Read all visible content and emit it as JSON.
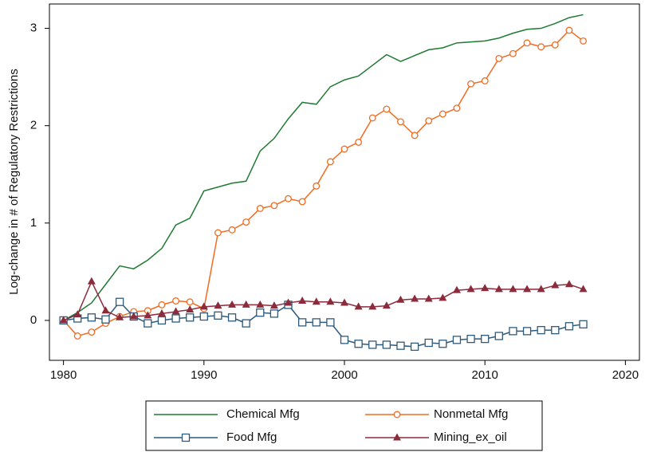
{
  "chart_data": {
    "type": "line",
    "y_label": "Log-change in # of Regulatory Restrictions",
    "x": [
      1980,
      1981,
      1982,
      1983,
      1984,
      1985,
      1986,
      1987,
      1988,
      1989,
      1990,
      1991,
      1992,
      1993,
      1994,
      1995,
      1996,
      1997,
      1998,
      1999,
      2000,
      2001,
      2002,
      2003,
      2004,
      2005,
      2006,
      2007,
      2008,
      2009,
      2010,
      2011,
      2012,
      2013,
      2014,
      2015,
      2016,
      2017
    ],
    "series": [
      {
        "name": "Chemical Mfg",
        "color": "#1f7a32",
        "marker": "none",
        "values": [
          0,
          0.08,
          0.18,
          0.37,
          0.56,
          0.53,
          0.62,
          0.74,
          0.98,
          1.05,
          1.33,
          1.37,
          1.41,
          1.43,
          1.74,
          1.87,
          2.07,
          2.24,
          2.22,
          2.4,
          2.47,
          2.51,
          2.62,
          2.73,
          2.66,
          2.72,
          2.78,
          2.8,
          2.85,
          2.86,
          2.87,
          2.9,
          2.95,
          2.99,
          3.0,
          3.05,
          3.11,
          3.14
        ]
      },
      {
        "name": "Nonmetal Mfg",
        "color": "#f26b21",
        "marker": "circle",
        "values": [
          0,
          -0.16,
          -0.12,
          -0.03,
          0.04,
          0.09,
          0.1,
          0.16,
          0.2,
          0.19,
          0.12,
          0.9,
          0.93,
          1.01,
          1.15,
          1.18,
          1.25,
          1.22,
          1.38,
          1.63,
          1.76,
          1.83,
          2.08,
          2.17,
          2.04,
          1.9,
          2.05,
          2.12,
          2.18,
          2.43,
          2.46,
          2.69,
          2.74,
          2.85,
          2.81,
          2.83,
          2.98,
          2.87
        ]
      },
      {
        "name": "Food Mfg",
        "color": "#2e5a7c",
        "marker": "square",
        "values": [
          0,
          0.02,
          0.03,
          0.01,
          0.19,
          0.04,
          -0.03,
          0.0,
          0.02,
          0.03,
          0.04,
          0.05,
          0.03,
          -0.03,
          0.08,
          0.07,
          0.16,
          -0.02,
          -0.02,
          -0.02,
          -0.2,
          -0.24,
          -0.25,
          -0.25,
          -0.26,
          -0.27,
          -0.23,
          -0.24,
          -0.2,
          -0.19,
          -0.19,
          -0.16,
          -0.11,
          -0.11,
          -0.1,
          -0.1,
          -0.06,
          -0.04
        ]
      },
      {
        "name": "Mining_ex_oil",
        "color": "#8c2b3c",
        "marker": "triangle",
        "values": [
          0,
          0.06,
          0.4,
          0.1,
          0.03,
          0.04,
          0.05,
          0.07,
          0.09,
          0.11,
          0.14,
          0.15,
          0.16,
          0.16,
          0.16,
          0.15,
          0.18,
          0.2,
          0.19,
          0.19,
          0.18,
          0.14,
          0.14,
          0.15,
          0.21,
          0.22,
          0.22,
          0.23,
          0.31,
          0.32,
          0.33,
          0.32,
          0.32,
          0.32,
          0.32,
          0.36,
          0.37,
          0.32
        ]
      }
    ],
    "xlim": [
      1979,
      2021
    ],
    "ylim": [
      -0.41,
      3.25
    ],
    "xticks": [
      1980,
      1990,
      2000,
      2010,
      2020
    ],
    "yticks": [
      0,
      1,
      2,
      3
    ],
    "legend": "bottom"
  }
}
